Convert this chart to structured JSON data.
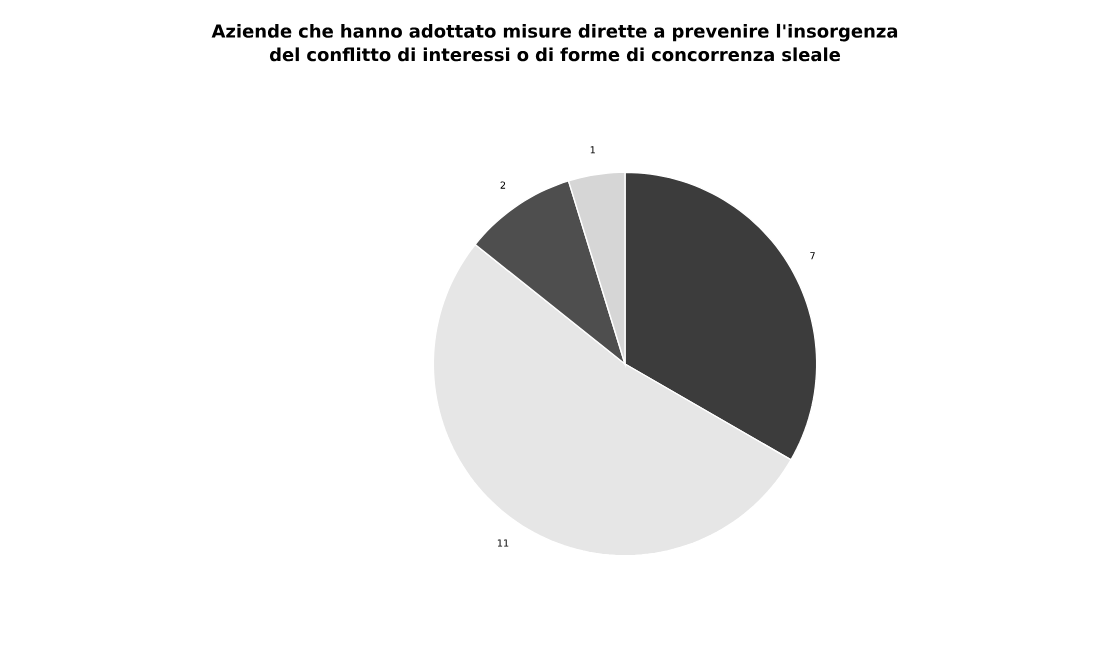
{
  "chart_data": {
    "type": "pie",
    "title": "Aziende che hanno adottato misure dirette a prevenire l'insorgenza del conflitto di interessi o di forme di concorrenza sleale",
    "categories": [
      null,
      null,
      null,
      null
    ],
    "values": [
      7,
      11,
      2,
      1
    ],
    "colors": [
      "#3c3c3c",
      "#e6e6e6",
      "#4e4e4e",
      "#d6d6d6"
    ],
    "data_labels": true
  }
}
